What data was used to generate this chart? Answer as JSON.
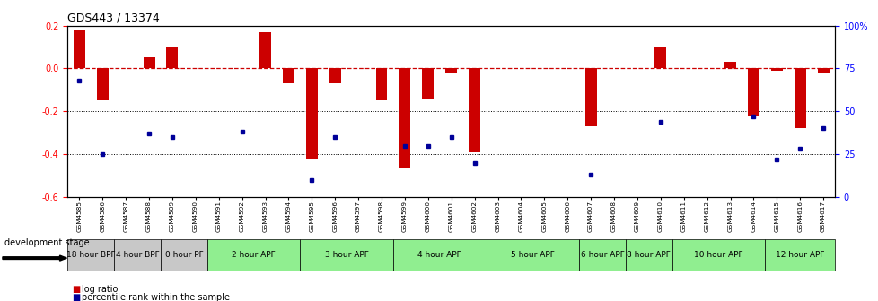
{
  "title": "GDS443 / 13374",
  "gsm_labels": [
    "GSM4585",
    "GSM4586",
    "GSM4587",
    "GSM4588",
    "GSM4589",
    "GSM4590",
    "GSM4591",
    "GSM4592",
    "GSM4593",
    "GSM4594",
    "GSM4595",
    "GSM4596",
    "GSM4597",
    "GSM4598",
    "GSM4599",
    "GSM4600",
    "GSM4601",
    "GSM4602",
    "GSM4603",
    "GSM4604",
    "GSM4605",
    "GSM4606",
    "GSM4607",
    "GSM4608",
    "GSM4609",
    "GSM4610",
    "GSM4611",
    "GSM4612",
    "GSM4613",
    "GSM4614",
    "GSM4615",
    "GSM4616",
    "GSM4617"
  ],
  "log_ratio": [
    0.18,
    -0.15,
    0.0,
    0.05,
    0.1,
    0.0,
    0.0,
    0.0,
    0.17,
    -0.07,
    -0.42,
    -0.07,
    0.0,
    -0.15,
    -0.46,
    -0.14,
    -0.02,
    -0.39,
    0.0,
    0.0,
    0.0,
    0.0,
    -0.27,
    0.0,
    0.0,
    0.1,
    0.0,
    0.0,
    0.03,
    -0.22,
    -0.01,
    -0.28,
    -0.02
  ],
  "percentile_rank": [
    68,
    25,
    null,
    37,
    35,
    null,
    null,
    38,
    null,
    null,
    10,
    35,
    null,
    null,
    30,
    30,
    35,
    20,
    null,
    null,
    null,
    null,
    13,
    null,
    null,
    44,
    null,
    null,
    null,
    47,
    22,
    28,
    40
  ],
  "stage_groups": [
    {
      "label": "18 hour BPF",
      "start": 0,
      "end": 1,
      "color": "#c8c8c8"
    },
    {
      "label": "4 hour BPF",
      "start": 2,
      "end": 3,
      "color": "#c8c8c8"
    },
    {
      "label": "0 hour PF",
      "start": 4,
      "end": 5,
      "color": "#c8c8c8"
    },
    {
      "label": "2 hour APF",
      "start": 6,
      "end": 9,
      "color": "#90ee90"
    },
    {
      "label": "3 hour APF",
      "start": 10,
      "end": 13,
      "color": "#90ee90"
    },
    {
      "label": "4 hour APF",
      "start": 14,
      "end": 17,
      "color": "#90ee90"
    },
    {
      "label": "5 hour APF",
      "start": 18,
      "end": 21,
      "color": "#90ee90"
    },
    {
      "label": "6 hour APF",
      "start": 22,
      "end": 23,
      "color": "#90ee90"
    },
    {
      "label": "8 hour APF",
      "start": 24,
      "end": 25,
      "color": "#90ee90"
    },
    {
      "label": "10 hour APF",
      "start": 26,
      "end": 29,
      "color": "#90ee90"
    },
    {
      "label": "12 hour APF",
      "start": 30,
      "end": 32,
      "color": "#90ee90"
    }
  ],
  "bar_color": "#cc0000",
  "dot_color": "#000099",
  "ylim": [
    -0.6,
    0.2
  ],
  "yticks_left": [
    -0.6,
    -0.4,
    -0.2,
    0.0,
    0.2
  ],
  "yticks_right_vals": [
    0,
    25,
    50,
    75,
    100
  ],
  "yticks_right_labels": [
    "0",
    "25",
    "50",
    "75",
    "100%"
  ],
  "background_color": "#ffffff",
  "dashed_color": "#cc0000",
  "dotted_color": "#000000"
}
